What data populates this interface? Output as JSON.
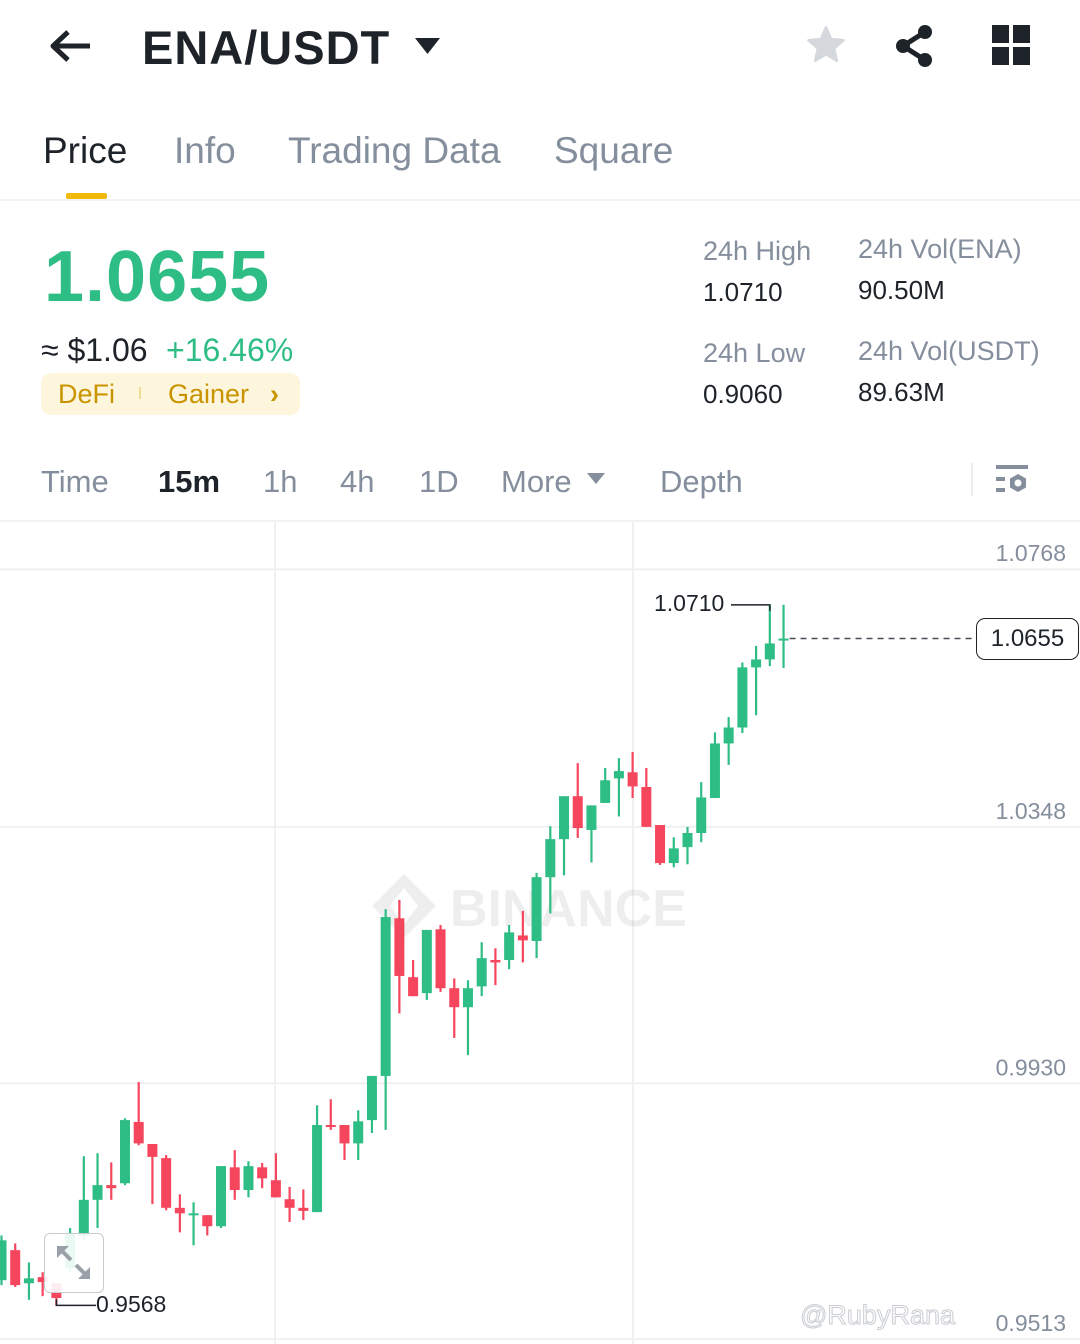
{
  "header": {
    "title": "ENA/USDT",
    "back_icon": "arrow-left-icon",
    "dropdown_icon": "caret-down-icon",
    "star_icon": "star-icon",
    "share_icon": "share-icon",
    "grid_icon": "grid-icon"
  },
  "tabs": [
    {
      "label": "Price",
      "active": true
    },
    {
      "label": "Info"
    },
    {
      "label": "Trading Data"
    },
    {
      "label": "Square"
    }
  ],
  "price": {
    "last": "1.0655",
    "usd": "≈ $1.06",
    "change": "+16.46%",
    "color_up": "#2ebd85",
    "color_down": "#f6465d"
  },
  "tags": {
    "first": "DeFi",
    "second": "Gainer"
  },
  "stats": {
    "high_label": "24h High",
    "high": "1.0710",
    "low_label": "24h Low",
    "low": "0.9060",
    "vol_base_label": "24h Vol(ENA)",
    "vol_base": "90.50M",
    "vol_quote_label": "24h Vol(USDT)",
    "vol_quote": "89.63M"
  },
  "timeframes": {
    "time": "Time",
    "m15": "15m",
    "h1": "1h",
    "h4": "4h",
    "d1": "1D",
    "more": "More",
    "depth": "Depth",
    "active": "15m"
  },
  "watermark": {
    "brand": "BINANCE",
    "user": "@RubyRana"
  },
  "chart_data": {
    "type": "candlestick",
    "interval": "15m",
    "ylim": [
      0.9505,
      1.0845
    ],
    "y_ticks": [
      "1.0768",
      "1.0348",
      "0.9930",
      "0.9513"
    ],
    "y_tick_values": [
      1.0768,
      1.0348,
      0.993,
      0.9513
    ],
    "high_marker": "1.0710",
    "low_marker": "0.9568",
    "last_price_label": "1.0655",
    "last_price": 1.0655,
    "candles_ohlc": [
      [
        0.9609,
        0.9682,
        0.9601,
        0.9674
      ],
      [
        0.9658,
        0.9669,
        0.9598,
        0.9601
      ],
      [
        0.9604,
        0.9638,
        0.9577,
        0.9612
      ],
      [
        0.9614,
        0.9622,
        0.9583,
        0.9606
      ],
      [
        0.9604,
        0.9604,
        0.9568,
        0.958
      ],
      [
        0.9629,
        0.9694,
        0.9622,
        0.9686
      ],
      [
        0.9682,
        0.9811,
        0.9674,
        0.974
      ],
      [
        0.974,
        0.9816,
        0.9694,
        0.9764
      ],
      [
        0.9764,
        0.9801,
        0.974,
        0.9759
      ],
      [
        0.9767,
        0.9873,
        0.9764,
        0.987
      ],
      [
        0.9867,
        0.9932,
        0.9829,
        0.9832
      ],
      [
        0.9831,
        0.9831,
        0.9733,
        0.981
      ],
      [
        0.9808,
        0.9813,
        0.9723,
        0.9727
      ],
      [
        0.9727,
        0.9749,
        0.9687,
        0.9718
      ],
      [
        0.9715,
        0.9736,
        0.9666,
        0.9718
      ],
      [
        0.9715,
        0.9715,
        0.9682,
        0.9697
      ],
      [
        0.9697,
        0.9795,
        0.9694,
        0.9795
      ],
      [
        0.9793,
        0.9821,
        0.974,
        0.9756
      ],
      [
        0.9756,
        0.9803,
        0.9744,
        0.9795
      ],
      [
        0.9793,
        0.98,
        0.9759,
        0.9775
      ],
      [
        0.9772,
        0.9816,
        0.9744,
        0.9744
      ],
      [
        0.9741,
        0.9761,
        0.9704,
        0.9727
      ],
      [
        0.9727,
        0.9757,
        0.9707,
        0.9722
      ],
      [
        0.972,
        0.9894,
        0.972,
        0.9862
      ],
      [
        0.9862,
        0.9904,
        0.9854,
        0.9859
      ],
      [
        0.9862,
        0.9862,
        0.9805,
        0.9832
      ],
      [
        0.9832,
        0.9886,
        0.9805,
        0.9868
      ],
      [
        0.987,
        0.9942,
        0.9849,
        0.9942
      ],
      [
        0.9942,
        1.0214,
        0.9854,
        1.0201
      ],
      [
        1.0199,
        1.0229,
        1.0044,
        1.0105
      ],
      [
        1.0103,
        1.0131,
        1.0072,
        1.0072
      ],
      [
        1.0077,
        1.018,
        1.0066,
        1.018
      ],
      [
        1.0181,
        1.0188,
        1.0079,
        1.0085
      ],
      [
        1.0085,
        1.0101,
        1.0004,
        1.0054
      ],
      [
        1.0054,
        1.0098,
        0.9976,
        1.0085
      ],
      [
        1.0088,
        1.016,
        1.0072,
        1.0134
      ],
      [
        1.0131,
        1.015,
        1.009,
        1.0127
      ],
      [
        1.0131,
        1.0188,
        1.0116,
        1.0176
      ],
      [
        1.0171,
        1.0211,
        1.0127,
        1.0163
      ],
      [
        1.0162,
        1.0273,
        1.0134,
        1.0266
      ],
      [
        1.0266,
        1.0349,
        1.0207,
        1.0328
      ],
      [
        1.0328,
        1.0398,
        1.0269,
        1.0398
      ],
      [
        1.0398,
        1.0452,
        1.033,
        1.0346
      ],
      [
        1.0343,
        1.0383,
        1.029,
        1.0383
      ],
      [
        1.0387,
        1.0444,
        1.0387,
        1.0424
      ],
      [
        1.0427,
        1.046,
        1.0365,
        1.0439
      ],
      [
        1.0437,
        1.047,
        1.0395,
        1.0414
      ],
      [
        1.0413,
        1.0444,
        1.0348,
        1.0348
      ],
      [
        1.0351,
        1.0351,
        1.0286,
        1.0289
      ],
      [
        1.0289,
        1.0331,
        1.0282,
        1.0313
      ],
      [
        1.0315,
        1.0348,
        1.0287,
        1.0338
      ],
      [
        1.0338,
        1.0421,
        1.0323,
        1.0396
      ],
      [
        1.0395,
        1.0502,
        1.0395,
        1.0484
      ],
      [
        1.0484,
        1.0527,
        1.0449,
        1.051
      ],
      [
        1.051,
        1.0616,
        1.0501,
        1.0608
      ],
      [
        1.0608,
        1.0643,
        1.053,
        1.0621
      ],
      [
        1.0621,
        1.071,
        1.061,
        1.0647
      ],
      [
        1.0653,
        1.071,
        1.0607,
        1.0655
      ]
    ]
  }
}
